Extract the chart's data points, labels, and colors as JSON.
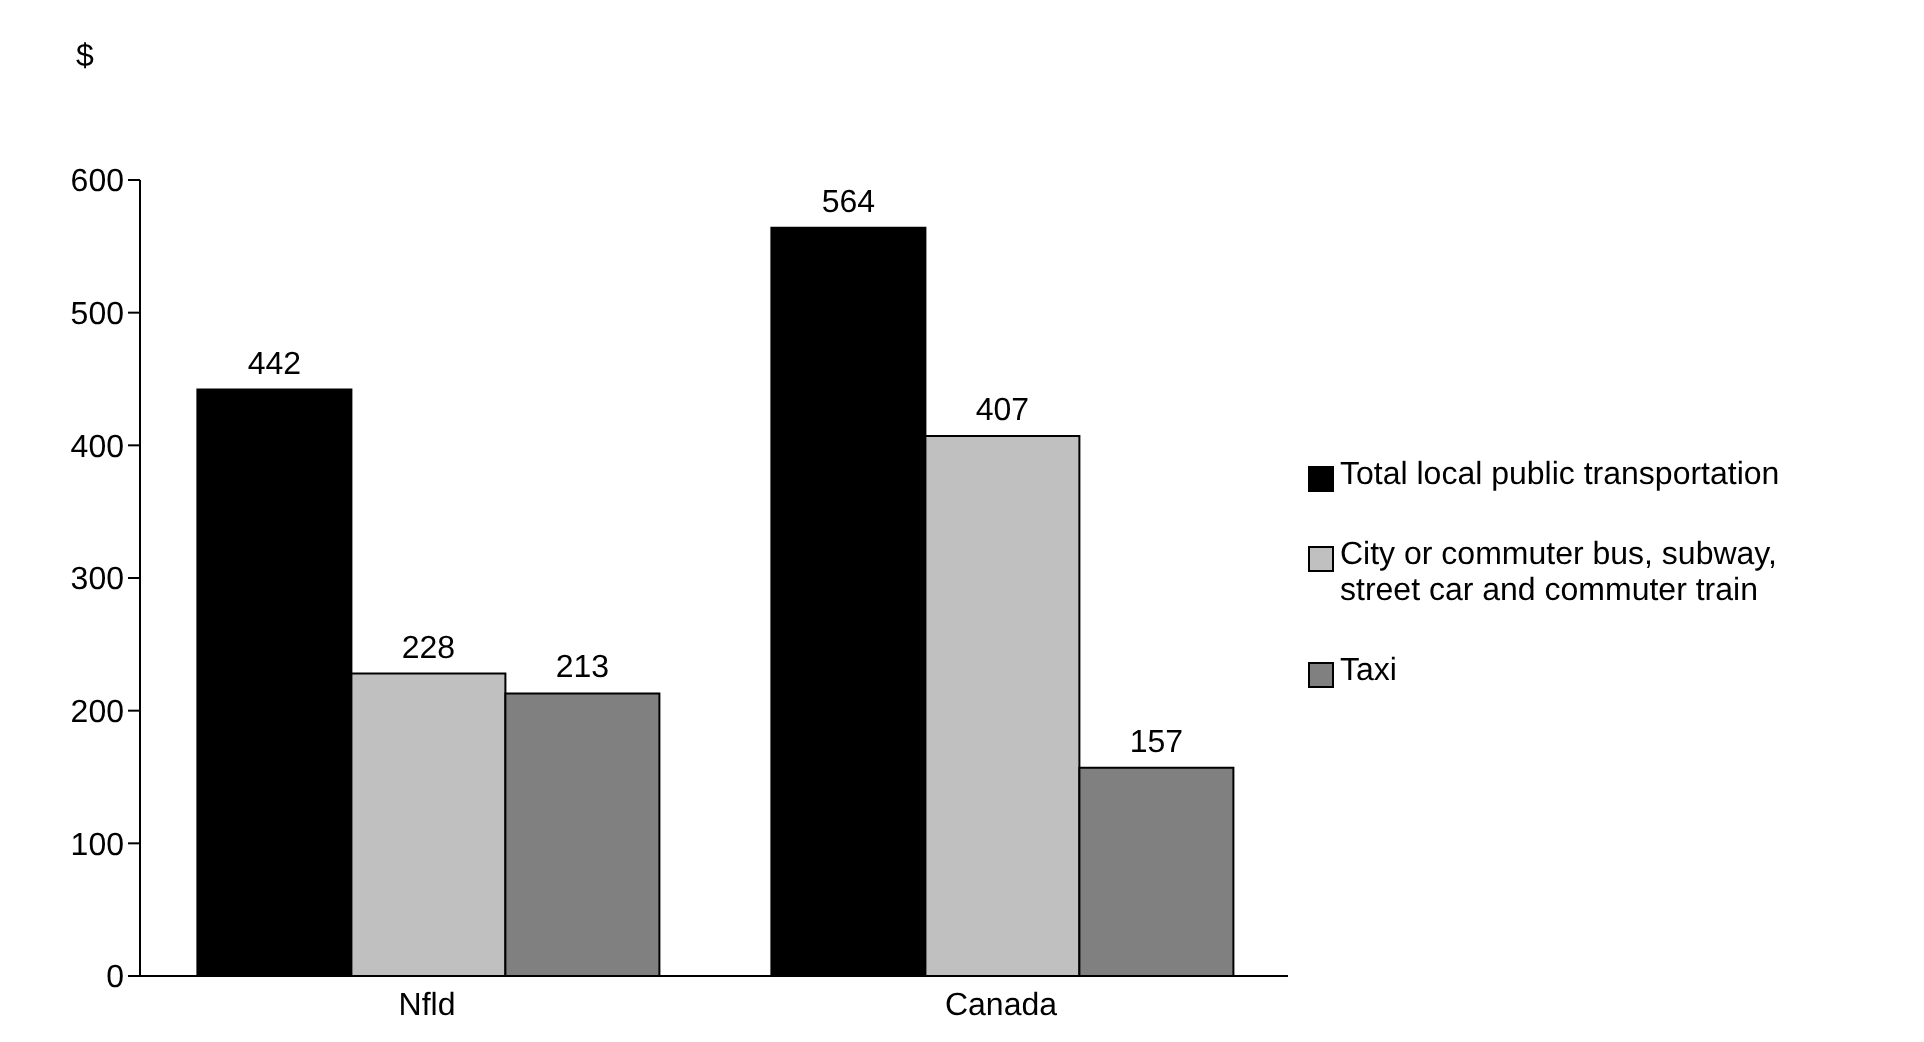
{
  "chart_data": {
    "type": "bar",
    "ylabel": "$",
    "categories": [
      "Nfld",
      "Canada"
    ],
    "series": [
      {
        "name": "Total local public transportation",
        "color": "#000000",
        "values": [
          442,
          564
        ]
      },
      {
        "name": "City or commuter bus, subway, street car and commuter train",
        "color": "#c0c0c0",
        "values": [
          228,
          407
        ]
      },
      {
        "name": "Taxi",
        "color": "#808080",
        "values": [
          213,
          157
        ]
      }
    ],
    "ylim": [
      0,
      600
    ],
    "yticks": [
      0,
      100,
      200,
      300,
      400,
      500,
      600
    ],
    "data_labels": true,
    "grid": false,
    "legend": "right"
  }
}
